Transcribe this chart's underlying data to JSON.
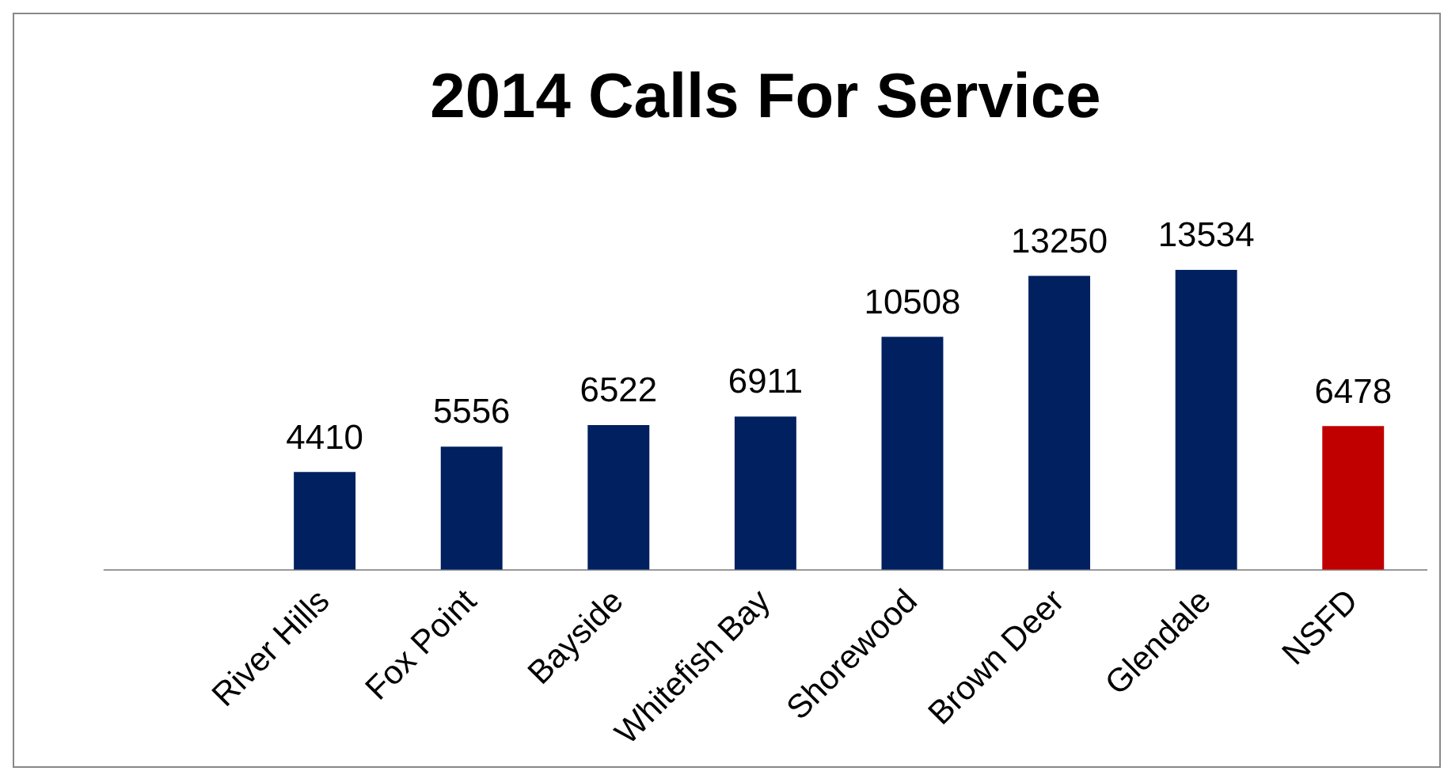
{
  "chart_data": {
    "type": "bar",
    "title": "2014 Calls For Service",
    "categories": [
      null,
      "River Hills",
      "Fox Point",
      "Bayside",
      "Whitefish Bay",
      "Shorewood",
      "Brown Deer",
      "Glendale",
      "NSFD"
    ],
    "values": [
      null,
      4410,
      5556,
      6522,
      6911,
      10508,
      13250,
      13534,
      6478
    ],
    "colors": [
      "#002060",
      "#002060",
      "#002060",
      "#002060",
      "#002060",
      "#002060",
      "#002060",
      "#002060",
      "#c00000"
    ],
    "data_labels": true,
    "grid": false,
    "legend": false
  }
}
